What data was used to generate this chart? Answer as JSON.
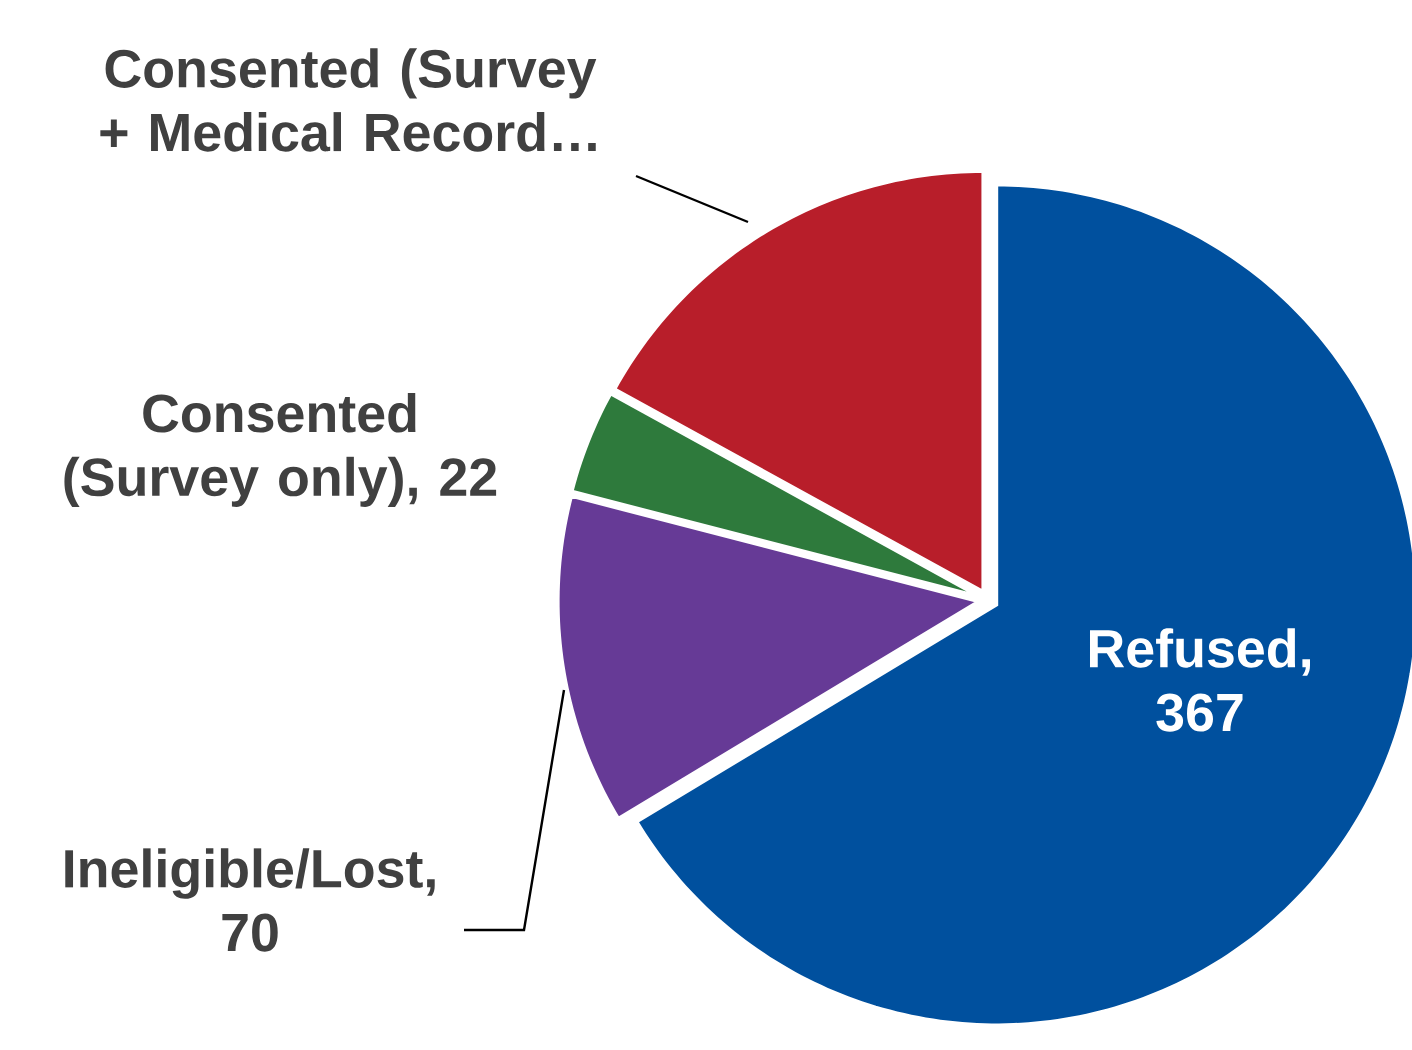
{
  "chart_data": {
    "type": "pie",
    "categories": [
      "Refused",
      "Ineligible/Lost",
      "Consented (Survey only)",
      "Consented (Survey + Medical Record…"
    ],
    "values": [
      367,
      70,
      22,
      94
    ],
    "value_labels": [
      ", 367",
      ", 70",
      ", 22",
      null
    ],
    "colors": [
      "#00509e",
      "#663a96",
      "#2e7a3c",
      "#b81e2a"
    ]
  }
}
